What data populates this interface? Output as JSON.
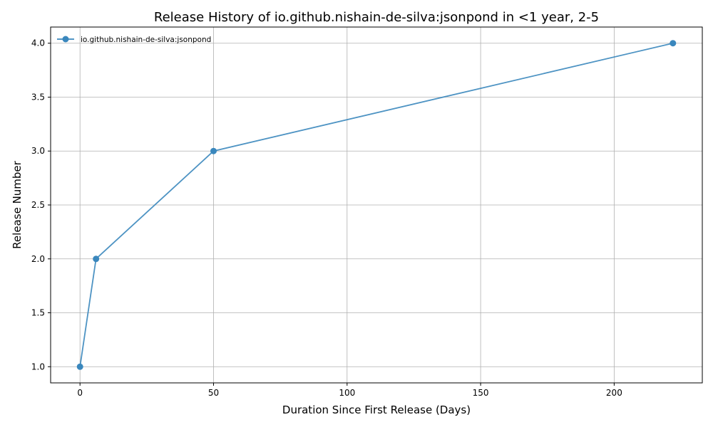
{
  "chart_data": {
    "type": "line",
    "title": "Release History of io.github.nishain-de-silva:jsonpond in <1 year, 2-5",
    "xlabel": "Duration Since First Release (Days)",
    "ylabel": "Release Number",
    "xlim": [
      -11,
      233
    ],
    "ylim": [
      0.85,
      4.15
    ],
    "x_ticks": [
      0,
      50,
      100,
      150,
      200
    ],
    "x_tick_labels": [
      "0",
      "50",
      "100",
      "150",
      "200"
    ],
    "y_ticks": [
      1.0,
      1.5,
      2.0,
      2.5,
      3.0,
      3.5,
      4.0
    ],
    "y_tick_labels": [
      "1.0",
      "1.5",
      "2.0",
      "2.5",
      "3.0",
      "3.5",
      "4.0"
    ],
    "grid": true,
    "legend_position": "top-left",
    "series": [
      {
        "name": "io.github.nishain-de-silva:jsonpond",
        "color": "#3a87bd",
        "marker": "circle",
        "x": [
          0,
          6,
          50,
          222
        ],
        "y": [
          1,
          2,
          3,
          4
        ]
      }
    ]
  }
}
